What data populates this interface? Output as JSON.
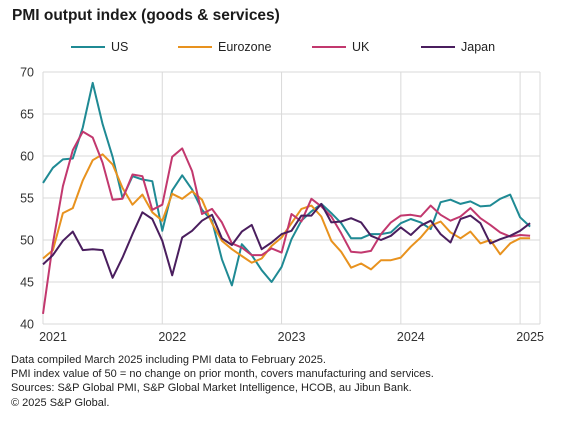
{
  "title": "PMI output index (goods & services)",
  "chart_data": {
    "type": "line",
    "title": "PMI output index (goods & services)",
    "ylim": [
      40,
      70
    ],
    "yticks": [
      40,
      45,
      50,
      55,
      60,
      65,
      70
    ],
    "xlim": [
      "2021-01",
      "2025-03"
    ],
    "xticks": [
      "2021",
      "2022",
      "2023",
      "2024",
      "2025"
    ],
    "grid": true,
    "legend": "top",
    "x": [
      "2021-01",
      "2021-02",
      "2021-03",
      "2021-04",
      "2021-05",
      "2021-06",
      "2021-07",
      "2021-08",
      "2021-09",
      "2021-10",
      "2021-11",
      "2021-12",
      "2022-01",
      "2022-02",
      "2022-03",
      "2022-04",
      "2022-05",
      "2022-06",
      "2022-07",
      "2022-08",
      "2022-09",
      "2022-10",
      "2022-11",
      "2022-12",
      "2023-01",
      "2023-02",
      "2023-03",
      "2023-04",
      "2023-05",
      "2023-06",
      "2023-07",
      "2023-08",
      "2023-09",
      "2023-10",
      "2023-11",
      "2023-12",
      "2024-01",
      "2024-02",
      "2024-03",
      "2024-04",
      "2024-05",
      "2024-06",
      "2024-07",
      "2024-08",
      "2024-09",
      "2024-10",
      "2024-11",
      "2024-12",
      "2025-01",
      "2025-02"
    ],
    "series": [
      {
        "name": "US",
        "color": "#1f8a94",
        "values": [
          56.8,
          58.6,
          59.6,
          59.7,
          63.4,
          68.7,
          63.8,
          59.9,
          55.0,
          57.6,
          57.2,
          57.0,
          51.1,
          55.9,
          57.7,
          56.0,
          53.6,
          52.3,
          47.7,
          44.6,
          49.5,
          48.2,
          46.4,
          45.0,
          46.8,
          50.1,
          52.3,
          53.4,
          54.3,
          53.2,
          52.0,
          50.2,
          50.2,
          50.7,
          50.7,
          50.9,
          52.0,
          52.5,
          52.1,
          51.3,
          54.5,
          54.8,
          54.3,
          54.6,
          54.0,
          54.1,
          54.9,
          55.4,
          52.7,
          51.6
        ]
      },
      {
        "name": "Eurozone",
        "color": "#e8921e",
        "values": [
          47.8,
          48.8,
          53.2,
          53.8,
          57.1,
          59.5,
          60.2,
          59.0,
          56.2,
          54.2,
          55.4,
          53.3,
          52.3,
          55.5,
          54.9,
          55.8,
          54.8,
          52.0,
          49.9,
          48.9,
          48.1,
          47.3,
          47.8,
          49.3,
          50.3,
          52.0,
          53.7,
          54.1,
          52.8,
          49.9,
          48.6,
          46.7,
          47.2,
          46.5,
          47.6,
          47.6,
          47.9,
          49.2,
          50.3,
          51.7,
          52.2,
          50.9,
          50.2,
          51.0,
          49.6,
          50.0,
          48.3,
          49.6,
          50.2,
          50.2
        ]
      },
      {
        "name": "UK",
        "color": "#c2386e",
        "values": [
          41.2,
          49.6,
          56.4,
          60.7,
          62.9,
          62.2,
          59.2,
          54.8,
          54.9,
          57.8,
          57.6,
          53.6,
          54.2,
          59.9,
          60.9,
          58.2,
          53.1,
          53.7,
          52.1,
          49.6,
          49.1,
          48.2,
          48.2,
          49.0,
          48.5,
          53.1,
          52.2,
          54.9,
          54.0,
          52.8,
          50.8,
          48.6,
          48.5,
          48.7,
          50.7,
          52.1,
          52.9,
          53.0,
          52.8,
          54.1,
          53.0,
          52.3,
          52.8,
          53.8,
          52.6,
          51.8,
          50.9,
          50.4,
          50.6,
          50.5
        ]
      },
      {
        "name": "Japan",
        "color": "#4a1e5e",
        "values": [
          47.1,
          48.2,
          49.9,
          51.0,
          48.8,
          48.9,
          48.8,
          45.5,
          47.9,
          50.7,
          53.3,
          52.5,
          49.9,
          45.8,
          50.3,
          51.1,
          52.3,
          53.0,
          50.2,
          49.4,
          51.0,
          51.8,
          48.9,
          49.7,
          50.7,
          51.1,
          52.9,
          52.9,
          54.3,
          52.1,
          52.2,
          52.6,
          52.1,
          50.5,
          50.0,
          50.5,
          51.5,
          50.6,
          51.7,
          52.3,
          50.7,
          49.7,
          52.5,
          52.9,
          52.0,
          49.6,
          50.1,
          50.5,
          51.1,
          52.0
        ]
      }
    ]
  },
  "footer": {
    "line1": "Data compiled March 2025 including PMI data to February 2025.",
    "line2": "PMI index value of 50 = no change on prior month, covers manufacturing and services.",
    "line3": "Sources: S&P Global PMI, S&P Global Market Intelligence, HCOB, au Jibun Bank.",
    "line4": "© 2025 S&P Global."
  }
}
